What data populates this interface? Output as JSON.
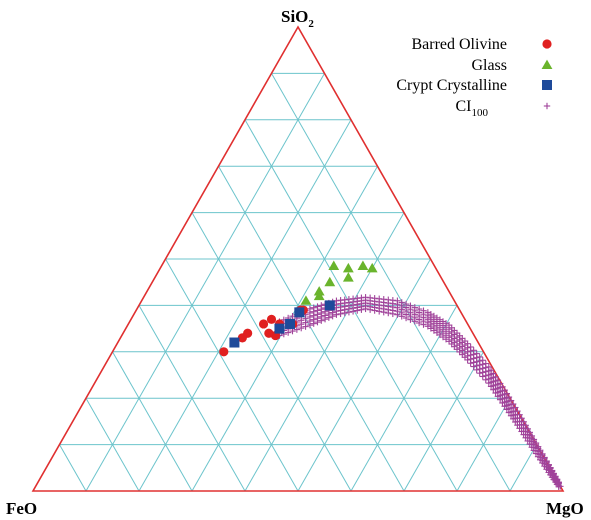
{
  "chart_data": {
    "type": "ternary-scatter",
    "axes": {
      "top": {
        "base": "SiO",
        "sub": "2"
      },
      "left": {
        "base": "FeO",
        "sub": ""
      },
      "right": {
        "base": "MgO",
        "sub": ""
      }
    },
    "grid_divisions": 10,
    "grid": true,
    "legend_position": "top-right",
    "colors": {
      "frame": "#e03030",
      "grid": "#6cc4cc",
      "barred_olivine": "#e02020",
      "glass": "#6ab42c",
      "crypt_crystalline": "#1e4a9a",
      "ci100": "#a0439a"
    },
    "series": [
      {
        "name": "Barred Olivine",
        "legend_sub": "",
        "marker": "circle",
        "color_key": "barred_olivine",
        "points": [
          {
            "sio2": 0.3,
            "mgo": 0.21,
            "feo": 0.49
          },
          {
            "sio2": 0.33,
            "mgo": 0.23,
            "feo": 0.44
          },
          {
            "sio2": 0.34,
            "mgo": 0.235,
            "feo": 0.425
          },
          {
            "sio2": 0.36,
            "mgo": 0.255,
            "feo": 0.385
          },
          {
            "sio2": 0.37,
            "mgo": 0.265,
            "feo": 0.365
          },
          {
            "sio2": 0.335,
            "mgo": 0.29,
            "feo": 0.375
          },
          {
            "sio2": 0.34,
            "mgo": 0.275,
            "feo": 0.385
          },
          {
            "sio2": 0.36,
            "mgo": 0.285,
            "feo": 0.355
          },
          {
            "sio2": 0.36,
            "mgo": 0.31,
            "feo": 0.33
          },
          {
            "sio2": 0.39,
            "mgo": 0.31,
            "feo": 0.3
          },
          {
            "sio2": 0.39,
            "mgo": 0.315,
            "feo": 0.295
          }
        ]
      },
      {
        "name": "Glass",
        "legend_sub": "",
        "marker": "triangle",
        "color_key": "glass",
        "points": [
          {
            "sio2": 0.485,
            "mgo": 0.325,
            "feo": 0.19
          },
          {
            "sio2": 0.48,
            "mgo": 0.355,
            "feo": 0.165
          },
          {
            "sio2": 0.485,
            "mgo": 0.38,
            "feo": 0.135
          },
          {
            "sio2": 0.48,
            "mgo": 0.4,
            "feo": 0.12
          },
          {
            "sio2": 0.45,
            "mgo": 0.335,
            "feo": 0.215
          },
          {
            "sio2": 0.46,
            "mgo": 0.365,
            "feo": 0.175
          },
          {
            "sio2": 0.43,
            "mgo": 0.325,
            "feo": 0.245
          },
          {
            "sio2": 0.41,
            "mgo": 0.31,
            "feo": 0.28
          },
          {
            "sio2": 0.42,
            "mgo": 0.33,
            "feo": 0.25
          }
        ]
      },
      {
        "name": "Crypt Crystalline",
        "legend_sub": "",
        "marker": "square",
        "color_key": "crypt_crystalline",
        "points": [
          {
            "sio2": 0.32,
            "mgo": 0.22,
            "feo": 0.46
          },
          {
            "sio2": 0.35,
            "mgo": 0.29,
            "feo": 0.36
          },
          {
            "sio2": 0.36,
            "mgo": 0.305,
            "feo": 0.335
          },
          {
            "sio2": 0.385,
            "mgo": 0.31,
            "feo": 0.305
          },
          {
            "sio2": 0.4,
            "mgo": 0.36,
            "feo": 0.24
          }
        ]
      },
      {
        "name": "CI",
        "legend_sub": "100",
        "marker": "plus",
        "color_key": "ci100",
        "band": {
          "centerline": [
            {
              "sio2": 0.35,
              "mgo": 0.29,
              "feo": 0.36
            },
            {
              "sio2": 0.375,
              "mgo": 0.335,
              "feo": 0.29
            },
            {
              "sio2": 0.395,
              "mgo": 0.375,
              "feo": 0.23
            },
            {
              "sio2": 0.405,
              "mgo": 0.425,
              "feo": 0.17
            },
            {
              "sio2": 0.395,
              "mgo": 0.49,
              "feo": 0.115
            },
            {
              "sio2": 0.37,
              "mgo": 0.56,
              "feo": 0.07
            },
            {
              "sio2": 0.34,
              "mgo": 0.615,
              "feo": 0.045
            },
            {
              "sio2": 0.3,
              "mgo": 0.67,
              "feo": 0.03
            },
            {
              "sio2": 0.25,
              "mgo": 0.735,
              "feo": 0.015
            },
            {
              "sio2": 0.2,
              "mgo": 0.79,
              "feo": 0.01
            },
            {
              "sio2": 0.15,
              "mgo": 0.843,
              "feo": 0.007
            },
            {
              "sio2": 0.1,
              "mgo": 0.895,
              "feo": 0.005
            },
            {
              "sio2": 0.05,
              "mgo": 0.948,
              "feo": 0.002
            },
            {
              "sio2": 0.01,
              "mgo": 0.99,
              "feo": 0.0
            }
          ],
          "width_sio2": [
            0.03,
            0.035,
            0.03,
            0.025,
            0.03,
            0.03,
            0.035,
            0.035,
            0.035,
            0.035,
            0.03,
            0.025,
            0.02,
            0.012
          ]
        }
      }
    ]
  }
}
